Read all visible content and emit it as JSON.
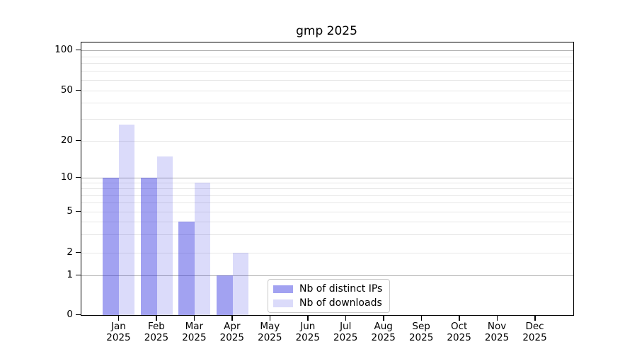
{
  "figure": {
    "background": "#ffffff"
  },
  "chart_data": {
    "type": "bar",
    "title": "gmp 2025",
    "categories": [
      "Jan 2025",
      "Feb 2025",
      "Mar 2025",
      "Apr 2025",
      "May 2025",
      "Jun 2025",
      "Jul 2025",
      "Aug 2025",
      "Sep 2025",
      "Oct 2025",
      "Nov 2025",
      "Dec 2025"
    ],
    "series": [
      {
        "name": "Nb of distinct IPs",
        "color": "rgba(34,34,221,0.42)",
        "values": [
          10,
          10,
          4,
          1,
          0,
          0,
          0,
          0,
          0,
          0,
          0,
          0
        ]
      },
      {
        "name": "Nb of downloads",
        "color": "rgba(34,34,221,0.16)",
        "values": [
          27,
          15,
          9,
          2,
          0,
          0,
          0,
          0,
          0,
          0,
          0,
          0
        ]
      }
    ],
    "xlabel": "",
    "ylabel": "",
    "y_axis": {
      "scale": "symlog",
      "tick_values": [
        100,
        50,
        20,
        10,
        5,
        2,
        1,
        0
      ],
      "major_gridlines": [
        1,
        10,
        100
      ],
      "minor_gridlines": [
        2,
        3,
        4,
        5,
        6,
        7,
        8,
        9,
        20,
        30,
        40,
        50,
        60,
        70,
        80,
        90
      ],
      "ylim": [
        0,
        120
      ]
    },
    "grid": "on",
    "colors": {
      "major_grid": "#b0b0b0",
      "minor_grid": "#e7e7e7",
      "axis": "#000000",
      "legend_border": "#c9c9c9"
    },
    "legend_position": "lower center"
  }
}
